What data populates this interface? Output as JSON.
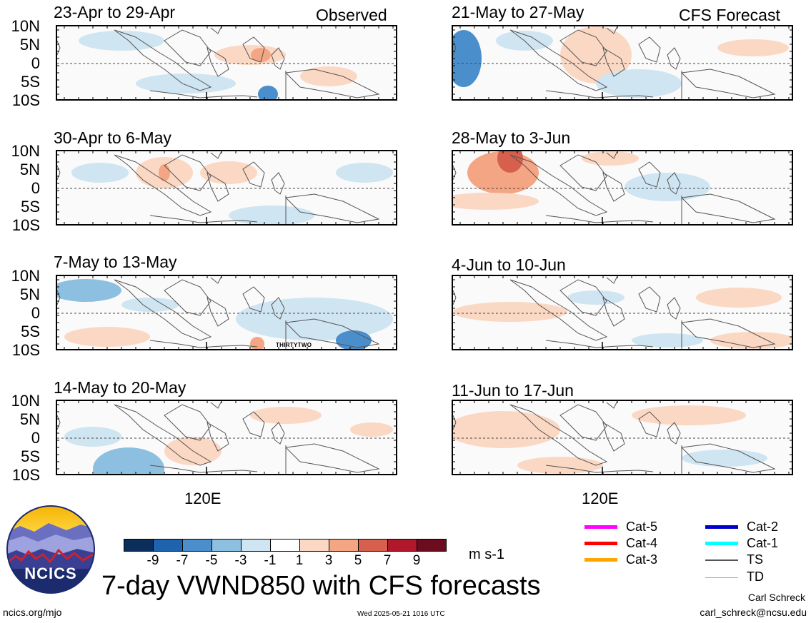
{
  "panels_left": [
    {
      "title": "23-Apr to 29-Apr",
      "tag": "Observed"
    },
    {
      "title": "30-Apr to 6-May",
      "tag": ""
    },
    {
      "title": "7-May to 13-May",
      "tag": "",
      "storm_label": "THIRTYTWO"
    },
    {
      "title": "14-May to 20-May",
      "tag": ""
    }
  ],
  "panels_right": [
    {
      "title": "21-May to 27-May",
      "tag": "CFS Forecast"
    },
    {
      "title": "28-May to 3-Jun",
      "tag": ""
    },
    {
      "title": "4-Jun to 10-Jun",
      "tag": ""
    },
    {
      "title": "11-Jun to 17-Jun",
      "tag": ""
    }
  ],
  "lat_labels": [
    "10N",
    "5N",
    "0",
    "5S",
    "10S"
  ],
  "lon_label": "120E",
  "colorbar": {
    "labels": [
      "-9",
      "-7",
      "-5",
      "-3",
      "-1",
      "1",
      "3",
      "5",
      "7",
      "9"
    ],
    "colors": [
      "#0b2e5a",
      "#1f62ad",
      "#4a8fcc",
      "#8dbfe0",
      "#cfe5f2",
      "#ffffff",
      "#fbd8c4",
      "#f4a583",
      "#d6604d",
      "#b2182b",
      "#6b0d1f"
    ],
    "units": "m s-1"
  },
  "legend": [
    {
      "label": "Cat-5",
      "color": "#ff00ff"
    },
    {
      "label": "Cat-4",
      "color": "#ff0000"
    },
    {
      "label": "Cat-3",
      "color": "#ffa500"
    },
    {
      "label": "Cat-2",
      "color": "#0000cc"
    },
    {
      "label": "Cat-1",
      "color": "#00ffff"
    },
    {
      "label": "TS",
      "color": "#555555"
    },
    {
      "label": "TD",
      "color": "#aaaaaa"
    }
  ],
  "logo_text": "NCICS",
  "main_title": "7-day VWND850 with CFS forecasts",
  "footer": {
    "url": "ncics.org/mjo",
    "timestamp": "Wed 2025-05-21 1016 UTC",
    "author": "Carl Schreck",
    "email": "carl_schreck@ncsu.edu"
  }
}
